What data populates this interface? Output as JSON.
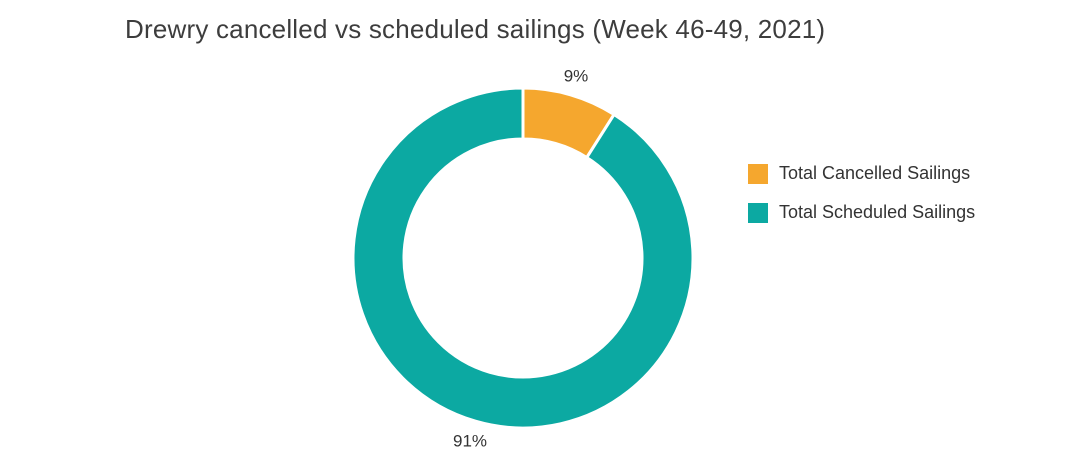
{
  "title": "Drewry cancelled vs scheduled sailings (Week 46-49, 2021)",
  "colors": {
    "background": "#ffffff",
    "title_text": "#3d3d3d",
    "label_text": "#333333",
    "cancelled": "#F5A72E",
    "scheduled": "#0CA9A2",
    "slice_separator": "#ffffff"
  },
  "legend": {
    "items": [
      {
        "label": "Total Cancelled Sailings",
        "color": "#F5A72E"
      },
      {
        "label": "Total Scheduled Sailings",
        "color": "#0CA9A2"
      }
    ]
  },
  "chart_data": {
    "type": "pie",
    "subtype": "donut",
    "title": "Drewry cancelled vs scheduled sailings (Week 46-49, 2021)",
    "labels": [
      "Total Cancelled Sailings",
      "Total Scheduled Sailings"
    ],
    "values": [
      9,
      91
    ],
    "unit": "percent",
    "data_labels": [
      "9%",
      "91%"
    ],
    "colors": [
      "#F5A72E",
      "#0CA9A2"
    ],
    "start_angle_deg": 0,
    "direction": "clockwise",
    "donut_hole_ratio": 0.7,
    "label_position": "outside",
    "legend_position": "right"
  }
}
